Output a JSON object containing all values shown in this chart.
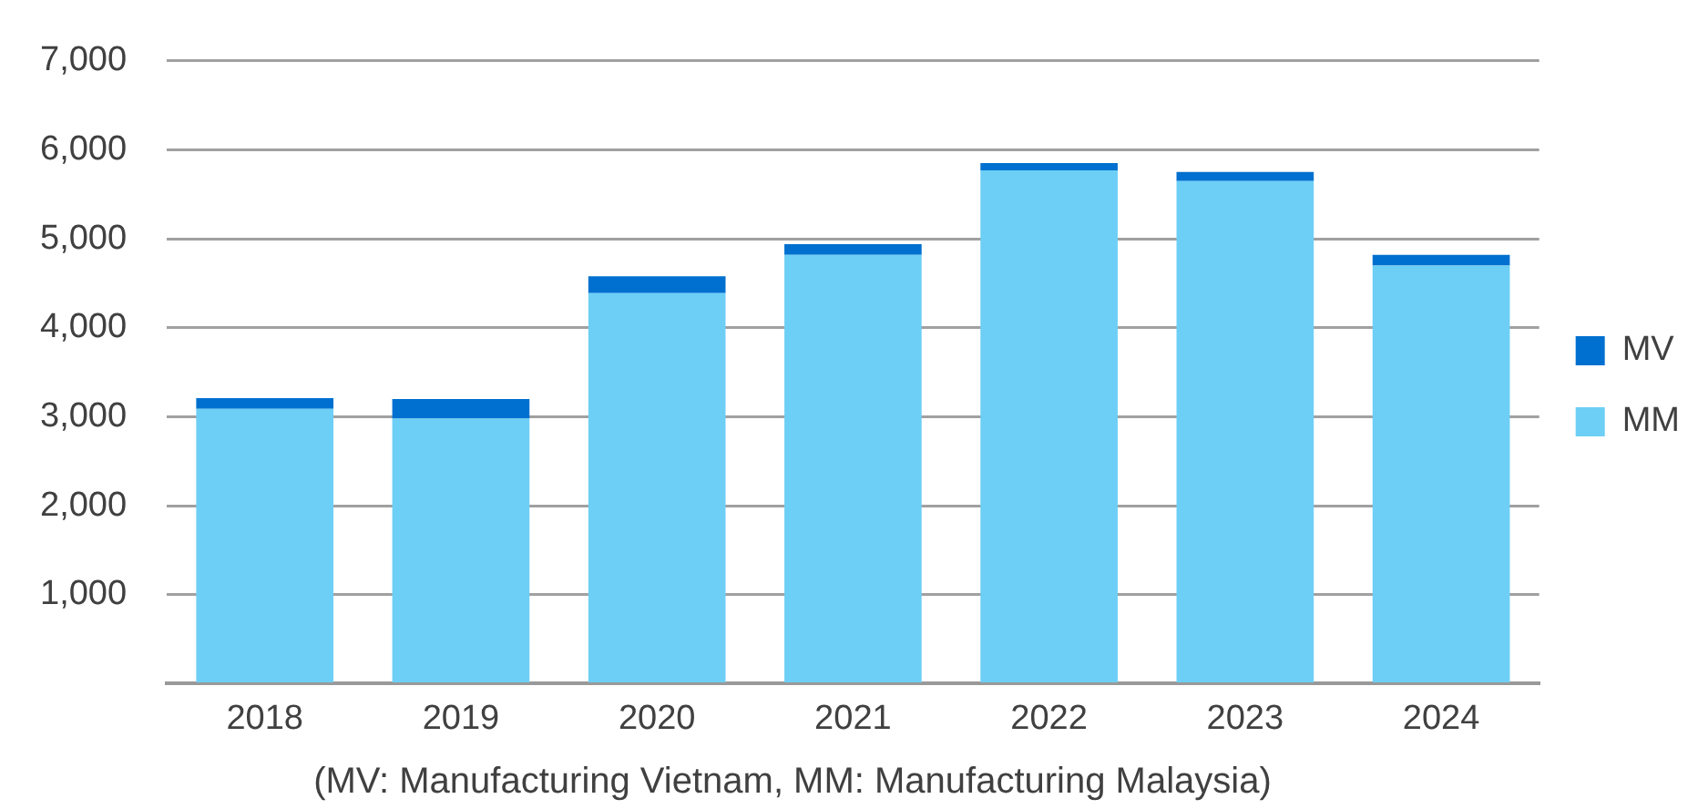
{
  "chart_data": {
    "type": "bar",
    "stacked": true,
    "categories": [
      "2018",
      "2019",
      "2020",
      "2021",
      "2022",
      "2023",
      "2024"
    ],
    "series": [
      {
        "name": "MM",
        "color": "#6dcff6",
        "values": [
          3090,
          2980,
          4390,
          4820,
          5770,
          5650,
          4700
        ]
      },
      {
        "name": "MV",
        "color": "#0070d0",
        "values": [
          120,
          220,
          190,
          120,
          80,
          100,
          120
        ]
      }
    ],
    "ylim": [
      0,
      7000
    ],
    "yticks": [
      {
        "value": 0,
        "label": null
      },
      {
        "value": 1000,
        "label": "1,000"
      },
      {
        "value": 2000,
        "label": "2,000"
      },
      {
        "value": 3000,
        "label": "3,000"
      },
      {
        "value": 4000,
        "label": "4,000"
      },
      {
        "value": 5000,
        "label": "5,000"
      },
      {
        "value": 6000,
        "label": "6,000"
      },
      {
        "value": 7000,
        "label": "7,000"
      }
    ],
    "grid": "y",
    "legend": "right",
    "annotations": [
      "(MV: Manufacturing Vietnam, MM: Manufacturing Malaysia)"
    ]
  }
}
